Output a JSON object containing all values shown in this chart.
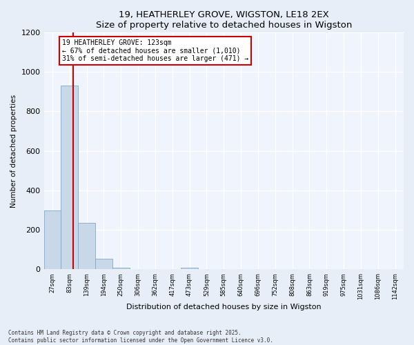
{
  "title": "19, HEATHERLEY GROVE, WIGSTON, LE18 2EX",
  "subtitle": "Size of property relative to detached houses in Wigston",
  "xlabel": "Distribution of detached houses by size in Wigston",
  "ylabel": "Number of detached properties",
  "bin_labels": [
    "27sqm",
    "83sqm",
    "139sqm",
    "194sqm",
    "250sqm",
    "306sqm",
    "362sqm",
    "417sqm",
    "473sqm",
    "529sqm",
    "585sqm",
    "640sqm",
    "696sqm",
    "752sqm",
    "808sqm",
    "863sqm",
    "919sqm",
    "975sqm",
    "1031sqm",
    "1086sqm",
    "1142sqm"
  ],
  "bar_values": [
    300,
    930,
    235,
    55,
    10,
    0,
    0,
    0,
    10,
    0,
    0,
    0,
    0,
    0,
    0,
    0,
    0,
    0,
    0,
    0,
    0
  ],
  "bar_color": "#c8d8e8",
  "bar_edge_color": "#7aaac8",
  "vline_color": "#cc0000",
  "annotation_text": "19 HEATHERLEY GROVE: 123sqm\n← 67% of detached houses are smaller (1,010)\n31% of semi-detached houses are larger (471) →",
  "annotation_box_color": "#ffffff",
  "annotation_box_edge": "#cc0000",
  "ylim": [
    0,
    1200
  ],
  "yticks": [
    0,
    200,
    400,
    600,
    800,
    1000,
    1200
  ],
  "footer": "Contains HM Land Registry data © Crown copyright and database right 2025.\nContains public sector information licensed under the Open Government Licence v3.0.",
  "bg_color": "#e8eef8",
  "plot_bg_color": "#f0f4fc",
  "grid_color": "#ffffff"
}
